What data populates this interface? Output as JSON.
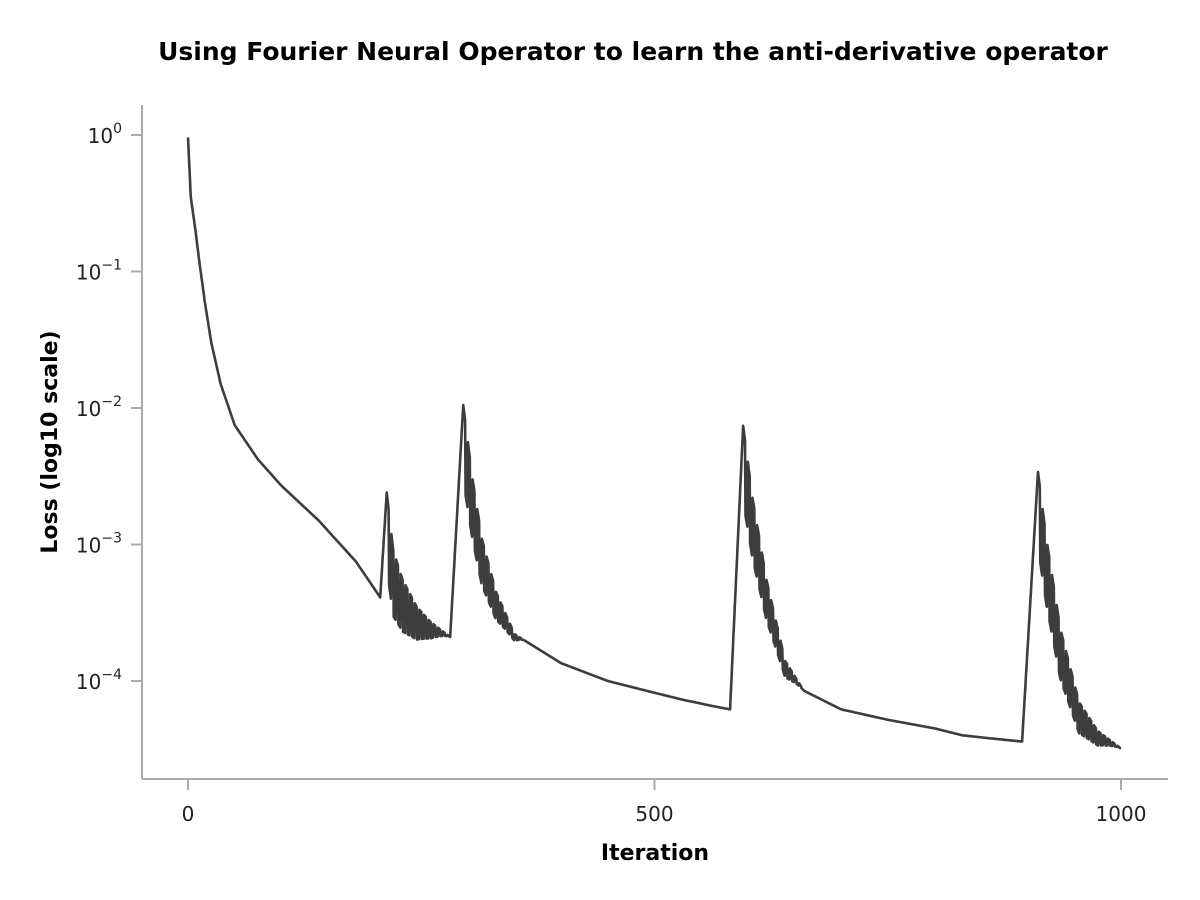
{
  "chart_data": {
    "type": "line",
    "title": "Using Fourier Neural Operator to learn the anti-derivative operator",
    "xlabel": "Iteration",
    "ylabel": "Loss (log10 scale)",
    "xscale": "linear",
    "yscale": "log10",
    "xlim": [
      0,
      1000
    ],
    "ylim_log10": [
      -4.72,
      0.22
    ],
    "grid": false,
    "legend": null,
    "x_ticks": [
      {
        "value": 0,
        "label": "0"
      },
      {
        "value": 500,
        "label": "500"
      },
      {
        "value": 1000,
        "label": "1000"
      }
    ],
    "y_ticks": [
      {
        "value": 1,
        "base": "10",
        "exp": "0"
      },
      {
        "value": 0.1,
        "base": "10",
        "exp": "−1"
      },
      {
        "value": 0.01,
        "base": "10",
        "exp": "−2"
      },
      {
        "value": 0.001,
        "base": "10",
        "exp": "−3"
      },
      {
        "value": 0.0001,
        "base": "10",
        "exp": "−4"
      }
    ],
    "line_color": "#3d3d3d",
    "series": [
      {
        "name": "Loss",
        "key_points": [
          [
            0,
            0.96
          ],
          [
            3,
            0.35
          ],
          [
            8,
            0.2
          ],
          [
            12,
            0.12
          ],
          [
            18,
            0.06
          ],
          [
            25,
            0.03
          ],
          [
            35,
            0.015
          ],
          [
            50,
            0.0075
          ],
          [
            75,
            0.0042
          ],
          [
            100,
            0.0027
          ],
          [
            140,
            0.0015
          ],
          [
            180,
            0.00075
          ],
          [
            206,
            0.00041
          ],
          [
            213,
            0.0024
          ],
          [
            220,
            0.0009
          ],
          [
            230,
            0.00055
          ],
          [
            245,
            0.00035
          ],
          [
            260,
            0.00027
          ],
          [
            281,
            0.00021
          ],
          [
            295,
            0.0105
          ],
          [
            305,
            0.003
          ],
          [
            315,
            0.0011
          ],
          [
            330,
            0.00045
          ],
          [
            350,
            0.00022
          ],
          [
            400,
            0.000135
          ],
          [
            450,
            0.0001
          ],
          [
            500,
            8.2e-05
          ],
          [
            530,
            7.3e-05
          ],
          [
            560,
            6.6e-05
          ],
          [
            581,
            6.2e-05
          ],
          [
            595,
            0.0074
          ],
          [
            605,
            0.0022
          ],
          [
            620,
            0.00055
          ],
          [
            640,
            0.00014
          ],
          [
            660,
            8.5e-05
          ],
          [
            700,
            6.2e-05
          ],
          [
            750,
            5.2e-05
          ],
          [
            800,
            4.5e-05
          ],
          [
            830,
            4e-05
          ],
          [
            860,
            3.8e-05
          ],
          [
            894,
            3.6e-05
          ],
          [
            911,
            0.0034
          ],
          [
            920,
            0.0011
          ],
          [
            935,
            0.00024
          ],
          [
            955,
            7e-05
          ],
          [
            975,
            4.3e-05
          ],
          [
            1000,
            3.2e-05
          ]
        ],
        "spikes": [
          {
            "start": 206,
            "peak": 213,
            "peak_value": 0.0024,
            "decay_end": 281
          },
          {
            "start": 281,
            "peak": 295,
            "peak_value": 0.0105,
            "decay_end": 360
          },
          {
            "start": 581,
            "peak": 595,
            "peak_value": 0.0074,
            "decay_end": 660
          },
          {
            "start": 894,
            "peak": 911,
            "peak_value": 0.0034,
            "decay_end": 1000
          }
        ]
      }
    ]
  }
}
